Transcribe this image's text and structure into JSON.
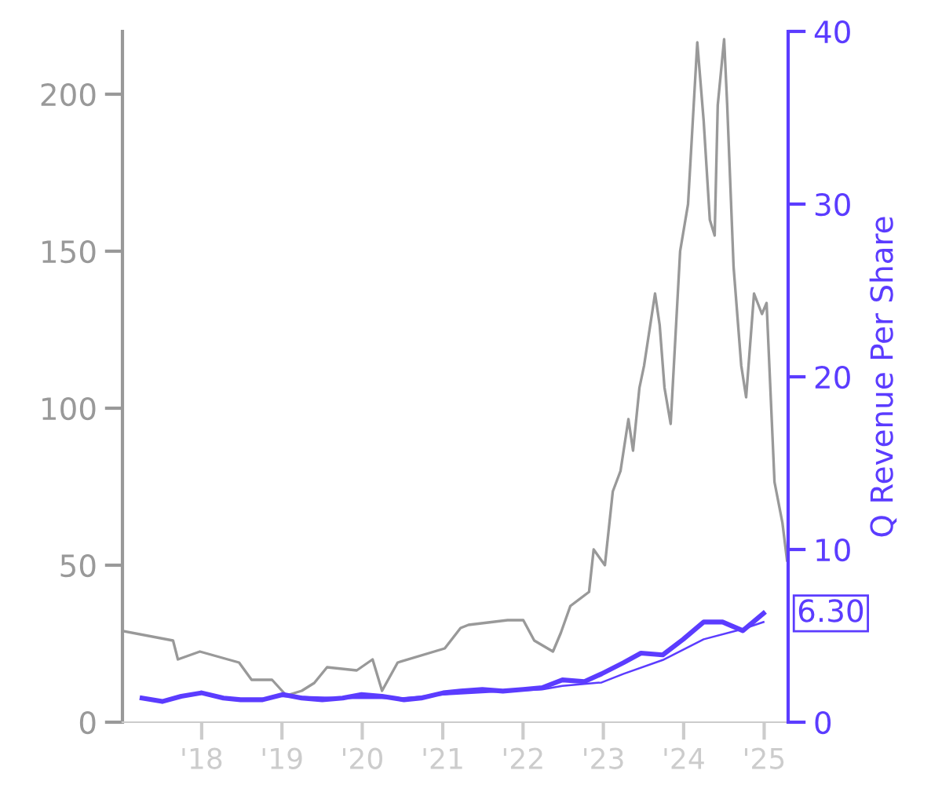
{
  "chart_data": {
    "type": "line",
    "y2label": "Q Revenue Per Share",
    "xlim": [
      "2017-01-06",
      "2025-04-20"
    ],
    "xticks": [
      {
        "value": "2018-01-01",
        "label": "'18"
      },
      {
        "value": "2019-01-01",
        "label": "'19"
      },
      {
        "value": "2020-01-01",
        "label": "'20"
      },
      {
        "value": "2021-01-01",
        "label": "'21"
      },
      {
        "value": "2022-01-01",
        "label": "'22"
      },
      {
        "value": "2023-01-01",
        "label": "'23"
      },
      {
        "value": "2024-01-01",
        "label": "'24"
      },
      {
        "value": "2025-01-01",
        "label": "'25"
      }
    ],
    "ylim": [
      0,
      220
    ],
    "yticks": [
      0,
      50,
      100,
      150,
      200
    ],
    "y2lim": [
      0,
      40
    ],
    "y2ticks": [
      0,
      10,
      20,
      30,
      40
    ],
    "grid": false,
    "legend": false,
    "series": [
      {
        "axis": "y",
        "color": "#999999",
        "x": [
          "2017-01-09",
          "2017-08-24",
          "2017-09-15",
          "2017-12-24",
          "2018-06-20",
          "2018-08-16",
          "2018-11-17",
          "2019-01-21",
          "2019-04-01",
          "2019-05-28",
          "2019-07-25",
          "2019-12-07",
          "2020-02-17",
          "2020-03-31",
          "2020-06-10",
          "2021-01-10",
          "2021-03-23",
          "2021-04-28",
          "2021-10-23",
          "2022-01-02",
          "2022-02-21",
          "2022-05-17",
          "2022-06-22",
          "2022-08-04",
          "2022-10-28",
          "2022-11-18",
          "2023-01-08",
          "2023-02-13",
          "2023-03-20",
          "2023-04-25",
          "2023-05-16",
          "2023-06-14",
          "2023-07-05",
          "2023-08-24",
          "2023-09-14",
          "2023-10-06",
          "2023-11-03",
          "2023-12-16",
          "2024-01-21",
          "2024-03-03",
          "2024-04-01",
          "2024-04-29",
          "2024-05-21",
          "2024-06-04",
          "2024-07-03",
          "2024-07-17",
          "2024-08-15",
          "2024-09-19",
          "2024-10-11",
          "2024-11-16",
          "2024-12-22",
          "2025-01-12",
          "2025-02-17",
          "2025-03-25",
          "2025-04-15"
        ],
        "values": [
          29,
          26,
          20,
          22.5,
          19,
          13.5,
          13.5,
          8.5,
          10,
          12.5,
          17.5,
          16.5,
          20,
          10,
          19,
          23.5,
          30,
          31,
          32.5,
          32.5,
          26,
          22.5,
          28.5,
          37,
          41.5,
          55,
          50,
          73.5,
          80,
          96.5,
          86.5,
          106.5,
          113.5,
          136.5,
          126.5,
          106.5,
          95,
          150,
          165,
          216.5,
          191.5,
          160,
          155,
          196.5,
          217.5,
          196.5,
          145,
          113.5,
          103.5,
          136.5,
          130,
          133.5,
          76.5,
          63.5,
          51.5
        ]
      },
      {
        "axis": "y2",
        "color": "#5b3cff",
        "x": [
          "2017-04-05",
          "2017-07-06",
          "2017-09-30",
          "2018-01-01",
          "2018-04-10",
          "2018-06-27",
          "2018-10-05",
          "2019-01-06",
          "2019-04-01",
          "2019-07-03",
          "2019-10-04",
          "2019-12-29",
          "2020-03-31",
          "2020-07-09",
          "2020-09-25",
          "2021-01-03",
          "2021-03-23",
          "2021-06-30",
          "2021-10-01",
          "2022-01-02",
          "2022-03-29",
          "2022-06-29",
          "2022-10-07",
          "2022-12-24",
          "2023-04-03",
          "2023-06-21",
          "2023-09-28",
          "2023-12-30",
          "2024-04-01",
          "2024-06-26",
          "2024-09-26",
          "2024-12-29"
        ],
        "values": [
          1.4,
          1.2,
          1.5,
          1.7,
          1.4,
          1.3,
          1.3,
          1.6,
          1.4,
          1.3,
          1.4,
          1.6,
          1.5,
          1.3,
          1.4,
          1.7,
          1.8,
          1.9,
          1.8,
          1.9,
          2.0,
          2.45,
          2.35,
          2.8,
          3.45,
          4.0,
          3.9,
          4.8,
          5.8,
          5.8,
          5.3,
          6.3
        ],
        "value_labels": [
          null,
          null,
          null,
          null,
          null,
          null,
          null,
          null,
          null,
          null,
          null,
          null,
          null,
          null,
          null,
          null,
          null,
          null,
          null,
          null,
          null,
          null,
          null,
          null,
          null,
          null,
          null,
          null,
          null,
          null,
          null,
          "6.30"
        ]
      },
      {
        "axis": "y2",
        "color": "#5b3cff",
        "x": [
          "2019-01-06",
          "2019-10-04",
          "2020-07-09",
          "2021-01-03",
          "2021-10-01",
          "2022-03-29",
          "2022-06-29",
          "2022-12-24",
          "2023-04-03",
          "2023-09-28",
          "2024-04-01",
          "2024-09-26",
          "2024-12-29"
        ],
        "values": [
          1.5,
          1.4,
          1.4,
          1.6,
          1.8,
          1.9,
          2.1,
          2.3,
          2.8,
          3.6,
          4.8,
          5.4,
          5.8
        ]
      }
    ]
  }
}
